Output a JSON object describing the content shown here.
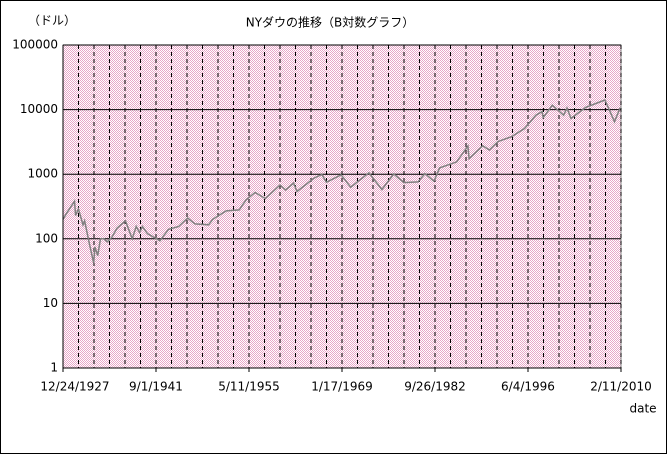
{
  "chart_data": {
    "type": "line",
    "title": "NYダウの推移（B対数グラフ）",
    "y_label": "（ドル）",
    "x_label": "date",
    "log_y": true,
    "ylim": [
      1,
      100000
    ],
    "yticks": [
      1,
      10,
      100,
      1000,
      10000,
      100000
    ],
    "xlim": [
      "12/24/1927",
      "2/11/2010"
    ],
    "xticks": [
      "12/24/1927",
      "9/1/1941",
      "5/11/1955",
      "1/17/1969",
      "9/26/1982",
      "6/4/1996",
      "2/11/2010"
    ],
    "grid": true,
    "x_minor_grid": true,
    "x": [
      "12/24/1927",
      "6/1/1928",
      "9/1/1929",
      "11/1/1929",
      "4/1/1930",
      "12/1/1930",
      "3/1/1931",
      "12/1/1931",
      "7/1/1932",
      "9/1/1932",
      "2/1/1933",
      "7/1/1933",
      "1/1/1934",
      "7/1/1934",
      "3/1/1935",
      "12/1/1935",
      "3/1/1937",
      "3/1/1938",
      "10/1/1938",
      "4/1/1939",
      "9/1/1939",
      "6/1/1940",
      "4/1/1942",
      "7/1/1943",
      "1/1/1945",
      "5/1/1946",
      "6/1/1947",
      "6/1/1949",
      "1/1/1950",
      "1/1/1952",
      "12/1/1953",
      "12/1/1954",
      "4/1/1956",
      "10/1/1957",
      "12/1/1959",
      "10/1/1960",
      "12/1/1961",
      "6/1/1962",
      "12/1/1964",
      "2/1/1966",
      "10/1/1966",
      "12/1/1968",
      "5/1/1970",
      "1/1/1973",
      "12/1/1974",
      "9/1/1976",
      "3/1/1978",
      "4/1/1980",
      "4/1/1981",
      "8/1/1982",
      "6/1/1983",
      "12/1/1985",
      "8/1/1987",
      "10/1/1987",
      "10/1/1989",
      "10/1/1990",
      "1/1/1992",
      "1/1/1994",
      "12/1/1995",
      "8/1/1997",
      "7/1/1998",
      "9/1/1998",
      "1/1/2000",
      "9/1/2001",
      "3/1/2002",
      "10/1/2002",
      "12/1/2004",
      "10/1/2007",
      "3/1/2009",
      "1/1/2010"
    ],
    "series": [
      {
        "name": "NYダウ",
        "color": "#808080",
        "values": [
          200,
          240,
          380,
          230,
          290,
          165,
          190,
          80,
          42,
          75,
          55,
          100,
          100,
          90,
          105,
          145,
          190,
          100,
          155,
          125,
          155,
          120,
          93,
          140,
          155,
          210,
          170,
          165,
          200,
          270,
          280,
          400,
          520,
          420,
          680,
          570,
          730,
          540,
          870,
          990,
          750,
          980,
          630,
          1050,
          580,
          1010,
          740,
          760,
          1020,
          780,
          1250,
          1550,
          2720,
          1740,
          2750,
          2370,
          3200,
          3800,
          5100,
          8200,
          9300,
          7500,
          11700,
          8200,
          10600,
          7300,
          10800,
          14100,
          6500,
          10700
        ]
      }
    ]
  }
}
